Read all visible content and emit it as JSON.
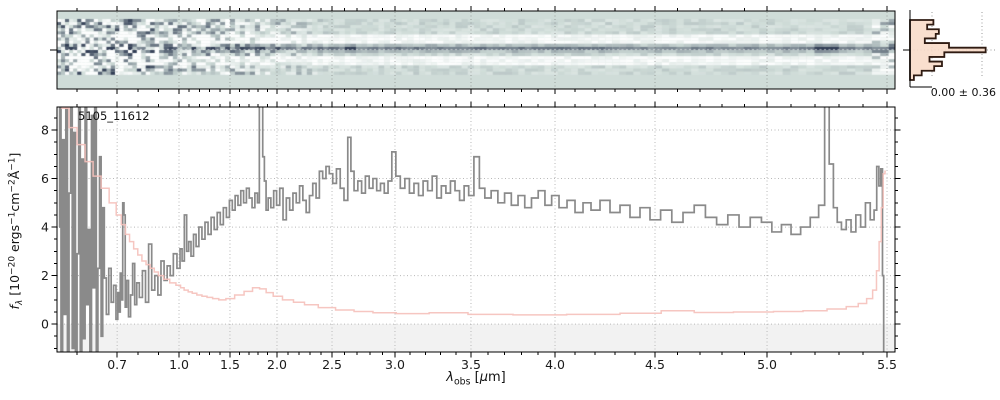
{
  "labels": {
    "source_id": "5105_11612",
    "hist_stats": "0.00 ± 0.36"
  },
  "axes": {
    "x": {
      "label_text": "lambda_obs [um]",
      "label_segments": [
        {
          "t": "λ",
          "i": 1
        },
        {
          "t": "obs",
          "sub": 1
        },
        {
          "t": " ["
        },
        {
          "t": "μ",
          "i": 1
        },
        {
          "t": "m]"
        }
      ]
    },
    "y": {
      "label_text": "f_lambda [10^-20 ergs^-1 cm^-2 A^-1]",
      "label_segments": [
        {
          "t": "f",
          "i": 1
        },
        {
          "t": "λ",
          "sub": 1,
          "i": 1
        },
        {
          "t": " [10"
        },
        {
          "t": "−20",
          "sup": 1
        },
        {
          "t": " ergs"
        },
        {
          "t": "−1",
          "sup": 1
        },
        {
          "t": "cm"
        },
        {
          "t": "−2",
          "sup": 1
        },
        {
          "t": "Å",
          "sup": 0
        },
        {
          "t": "−1",
          "sup": 1
        },
        {
          "t": "]"
        }
      ]
    }
  },
  "chart_data": [
    {
      "type": "heatmap",
      "name": "2d-spectrum-cutout",
      "x_unit": "micron",
      "x_range": [
        0.55,
        5.53
      ],
      "description": "Rectified 2D prism spectrum: dark source trace along center with white negative nod bands above/below, strong pixel noise blueward of ~1 micron, bright knots on the trace",
      "bright_knots_um": [
        1.84,
        2.65,
        5.25
      ],
      "noisy_below_um": 1.0,
      "colors": {
        "background": "#cfdcd8",
        "trace": "#323e55",
        "negative_band": "#fdfefe"
      }
    },
    {
      "type": "histogram",
      "name": "residual-histogram",
      "orientation": "horizontal",
      "annotation": "0.00 ± 0.36",
      "mean": 0.0,
      "sigma": 0.36,
      "bin_fractions_top_to_bottom": [
        0.3,
        0.22,
        0.37,
        0.33,
        0.19,
        0.5,
        0.97,
        0.44,
        0.25,
        0.41,
        0.31,
        0.15,
        0.05
      ],
      "fill_color": "#f8dcc9",
      "edge_color": "#2f1b12"
    },
    {
      "type": "line",
      "name": "1d-extracted-spectrum",
      "title": "5105_11612",
      "xlabel": "lambda_obs [um]",
      "ylabel": "f_lambda [10^-20 ergs^-1 cm^-2 A^-1]",
      "xlim": [
        0.55,
        5.53
      ],
      "ylim": [
        -1.15,
        8.95
      ],
      "xticks": [
        0.7,
        1.0,
        1.5,
        2.0,
        2.5,
        3.0,
        3.5,
        4.0,
        4.5,
        5.0,
        5.5
      ],
      "xtick_labels": [
        "0.7",
        "1.0",
        "1.5",
        "2.0",
        "2.5",
        "3.0",
        "3.5",
        "4.0",
        "4.5",
        "5.0",
        "5.5"
      ],
      "yticks": [
        0,
        2,
        4,
        6,
        8
      ],
      "ytick_labels": [
        "0",
        "2",
        "4",
        "6",
        "8"
      ],
      "grid": true,
      "below_zero_shading": true,
      "series": [
        {
          "name": "flux",
          "color": "#8a8a8a",
          "style": "steps-mid",
          "x": [
            0.555,
            0.558,
            0.562,
            0.566,
            0.57,
            0.574,
            0.578,
            0.582,
            0.586,
            0.59,
            0.594,
            0.598,
            0.602,
            0.606,
            0.61,
            0.614,
            0.618,
            0.622,
            0.626,
            0.63,
            0.634,
            0.638,
            0.642,
            0.646,
            0.65,
            0.654,
            0.658,
            0.662,
            0.666,
            0.67,
            0.676,
            0.682,
            0.688,
            0.694,
            0.7,
            0.706,
            0.712,
            0.718,
            0.724,
            0.73,
            0.736,
            0.742,
            0.75,
            0.76,
            0.77,
            0.78,
            0.79,
            0.8,
            0.815,
            0.83,
            0.845,
            0.86,
            0.875,
            0.89,
            0.905,
            0.92,
            0.935,
            0.95,
            0.965,
            0.98,
            1.0,
            1.02,
            1.04,
            1.065,
            1.085,
            1.105,
            1.13,
            1.155,
            1.18,
            1.21,
            1.24,
            1.27,
            1.3,
            1.33,
            1.36,
            1.39,
            1.42,
            1.45,
            1.48,
            1.51,
            1.54,
            1.57,
            1.6,
            1.63,
            1.66,
            1.69,
            1.72,
            1.75,
            1.78,
            1.805,
            1.82,
            1.84,
            1.857,
            1.875,
            1.893,
            1.92,
            1.95,
            1.98,
            2.01,
            2.04,
            2.07,
            2.1,
            2.13,
            2.16,
            2.19,
            2.22,
            2.25,
            2.28,
            2.31,
            2.34,
            2.37,
            2.4,
            2.43,
            2.46,
            2.49,
            2.52,
            2.55,
            2.58,
            2.61,
            2.64,
            2.66,
            2.69,
            2.72,
            2.75,
            2.78,
            2.81,
            2.84,
            2.87,
            2.9,
            2.93,
            2.96,
            2.99,
            3.02,
            3.05,
            3.08,
            3.11,
            3.14,
            3.17,
            3.2,
            3.23,
            3.26,
            3.29,
            3.32,
            3.35,
            3.38,
            3.41,
            3.44,
            3.47,
            3.5,
            3.535,
            3.565,
            3.6,
            3.64,
            3.68,
            3.72,
            3.76,
            3.8,
            3.84,
            3.88,
            3.92,
            3.96,
            4.0,
            4.04,
            4.08,
            4.12,
            4.16,
            4.2,
            4.25,
            4.3,
            4.35,
            4.4,
            4.45,
            4.5,
            4.55,
            4.6,
            4.65,
            4.7,
            4.75,
            4.8,
            4.85,
            4.9,
            4.95,
            5.0,
            5.04,
            5.08,
            5.12,
            5.16,
            5.2,
            5.23,
            5.25,
            5.268,
            5.285,
            5.3,
            5.32,
            5.34,
            5.36,
            5.38,
            5.4,
            5.42,
            5.44,
            5.452,
            5.462,
            5.47,
            5.478,
            5.484,
            5.488,
            5.495
          ],
          "y": [
            4.0,
            9.6,
            -1.3,
            7.6,
            0.4,
            9.6,
            -1.3,
            5.4,
            9.2,
            -1.0,
            7.9,
            -1.3,
            2.9,
            9.5,
            -1.2,
            6.8,
            -0.6,
            9.3,
            0.8,
            3.9,
            -1.3,
            8.6,
            1.5,
            9.5,
            -1.1,
            2.3,
            6.9,
            -0.5,
            4.8,
            1.9,
            0.4,
            2.3,
            0.9,
            1.6,
            0.2,
            1.3,
            0.5,
            2.1,
            1.0,
            5.0,
            4.5,
            0.7,
            1.8,
            0.3,
            1.2,
            2.5,
            0.8,
            1.7,
            1.1,
            2.2,
            0.9,
            3.3,
            1.4,
            2.0,
            1.2,
            2.6,
            1.8,
            2.4,
            2.0,
            2.9,
            2.3,
            3.1,
            2.6,
            4.5,
            3.0,
            3.4,
            2.8,
            3.7,
            3.2,
            4.0,
            3.5,
            4.2,
            3.7,
            4.4,
            3.9,
            4.6,
            4.1,
            4.8,
            4.4,
            5.1,
            4.7,
            5.3,
            4.9,
            5.5,
            5.0,
            5.6,
            5.2,
            4.8,
            5.4,
            5.0,
            9.7,
            9.7,
            6.9,
            5.9,
            4.7,
            5.2,
            4.8,
            5.5,
            4.9,
            5.6,
            4.3,
            5.2,
            4.7,
            5.4,
            5.0,
            5.7,
            5.1,
            4.6,
            5.3,
            5.8,
            5.2,
            6.3,
            6.0,
            6.5,
            6.2,
            5.8,
            6.4,
            5.6,
            5.1,
            7.7,
            6.3,
            5.5,
            5.9,
            5.4,
            6.1,
            5.6,
            6.0,
            5.5,
            5.8,
            5.4,
            5.9,
            7.1,
            6.1,
            5.6,
            6.0,
            5.4,
            5.8,
            5.3,
            5.9,
            5.5,
            6.1,
            5.2,
            5.7,
            5.4,
            5.9,
            5.5,
            5.1,
            5.7,
            5.3,
            6.9,
            5.6,
            5.2,
            5.5,
            5.0,
            5.4,
            4.9,
            5.3,
            4.8,
            5.2,
            5.5,
            4.9,
            5.3,
            4.8,
            5.1,
            4.6,
            5.0,
            4.7,
            5.1,
            4.6,
            4.9,
            4.4,
            4.8,
            4.3,
            4.7,
            4.2,
            4.6,
            4.9,
            4.4,
            4.1,
            4.5,
            4.0,
            4.4,
            4.2,
            3.8,
            4.1,
            3.7,
            4.0,
            4.4,
            4.9,
            9.7,
            6.6,
            4.8,
            4.2,
            3.9,
            4.3,
            3.8,
            4.5,
            4.0,
            5.0,
            4.3,
            4.7,
            6.5,
            5.7,
            6.4,
            2.0,
            -1.3,
            -1.3
          ]
        },
        {
          "name": "uncertainty",
          "color": "#f5c0ba",
          "style": "steps-mid",
          "x": [
            0.555,
            0.57,
            0.59,
            0.61,
            0.63,
            0.65,
            0.67,
            0.69,
            0.71,
            0.73,
            0.75,
            0.77,
            0.79,
            0.81,
            0.83,
            0.85,
            0.87,
            0.89,
            0.91,
            0.94,
            0.97,
            1.0,
            1.03,
            1.07,
            1.11,
            1.15,
            1.2,
            1.25,
            1.3,
            1.36,
            1.42,
            1.5,
            1.6,
            1.7,
            1.78,
            1.85,
            1.92,
            2.0,
            2.1,
            2.2,
            2.3,
            2.45,
            2.6,
            2.75,
            2.9,
            3.1,
            3.35,
            3.6,
            3.9,
            4.2,
            4.45,
            4.6,
            4.75,
            4.95,
            5.1,
            5.2,
            5.3,
            5.36,
            5.4,
            5.43,
            5.45,
            5.462,
            5.472,
            5.48,
            5.488,
            5.495
          ],
          "y": [
            9.4,
            8.9,
            8.1,
            7.4,
            6.7,
            6.1,
            5.6,
            5.0,
            4.5,
            4.1,
            3.7,
            3.4,
            3.1,
            2.85,
            2.6,
            2.45,
            2.3,
            2.15,
            2.0,
            1.85,
            1.7,
            1.6,
            1.5,
            1.4,
            1.33,
            1.27,
            1.2,
            1.15,
            1.1,
            1.05,
            1.0,
            1.05,
            1.2,
            1.35,
            1.5,
            1.45,
            1.3,
            1.15,
            1.0,
            0.9,
            0.8,
            0.68,
            0.58,
            0.52,
            0.47,
            0.43,
            0.47,
            0.4,
            0.38,
            0.4,
            0.45,
            0.55,
            0.48,
            0.5,
            0.52,
            0.55,
            0.62,
            0.72,
            0.85,
            1.05,
            1.4,
            2.2,
            3.4,
            4.8,
            6.2,
            6.3
          ]
        }
      ]
    }
  ]
}
